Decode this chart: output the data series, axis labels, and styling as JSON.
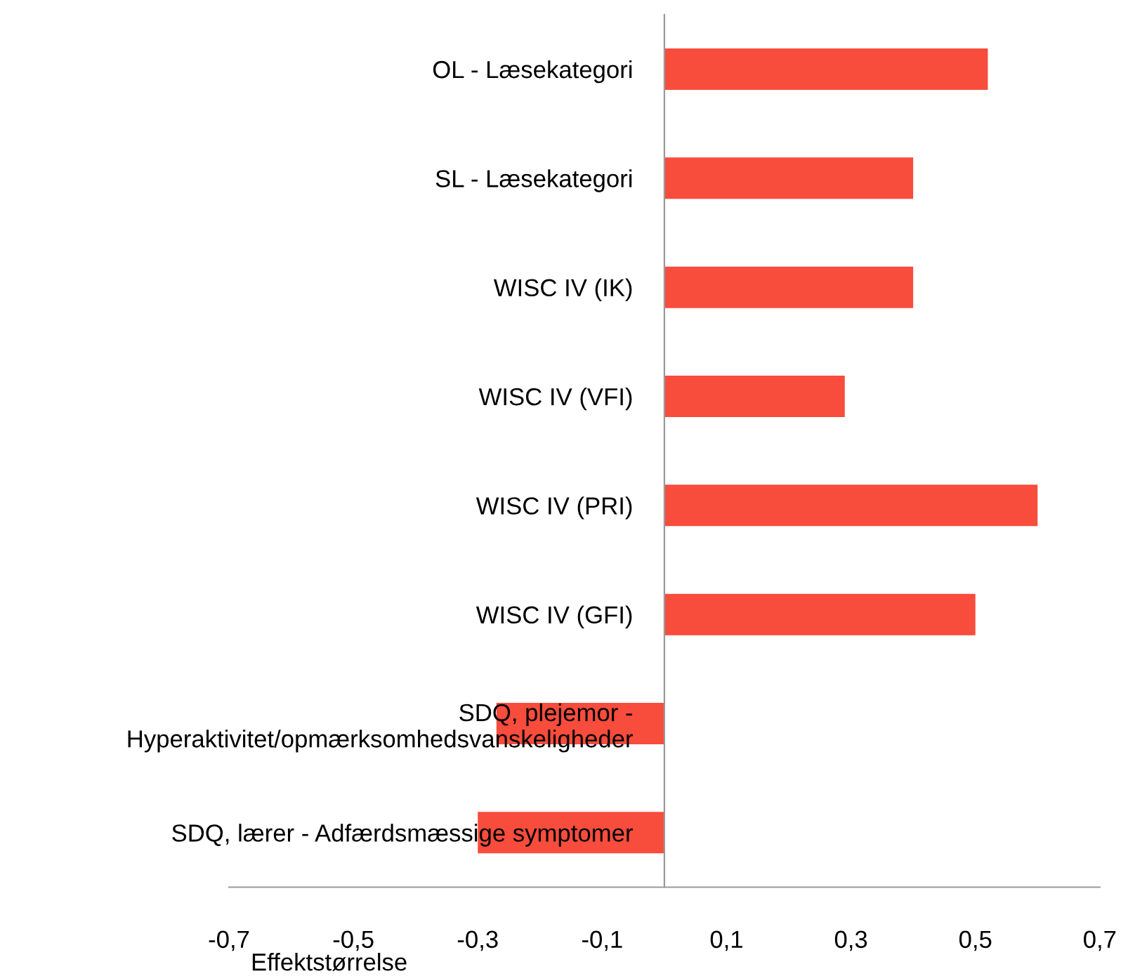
{
  "chart_data": {
    "type": "bar",
    "orientation": "horizontal",
    "xlabel": "Effektstørrelse",
    "categories": [
      "OL - Læsekategori",
      "SL - Læsekategori",
      "WISC IV (IK)",
      "WISC IV (VFI)",
      "WISC IV (PRI)",
      "WISC IV (GFI)",
      "SDQ, plejemor -\nHyperaktivitet/opmærksomhedsvanskeligheder",
      "SDQ, lærer - Adfærdsmæssige symptomer"
    ],
    "values": [
      0.52,
      0.4,
      0.4,
      0.29,
      0.6,
      0.5,
      -0.27,
      -0.3
    ],
    "color": "#f84c3d",
    "xlim": [
      -0.7,
      0.7
    ],
    "xticks": [
      {
        "value": -0.7,
        "label": "-0,7"
      },
      {
        "value": -0.5,
        "label": "-0,5"
      },
      {
        "value": -0.3,
        "label": "-0,3"
      },
      {
        "value": -0.1,
        "label": "-0,1"
      },
      {
        "value": 0.1,
        "label": "0,1"
      },
      {
        "value": 0.3,
        "label": "0,3"
      },
      {
        "value": 0.5,
        "label": "0,5"
      },
      {
        "value": 0.7,
        "label": "0,7"
      }
    ],
    "grid": false,
    "legend": false
  }
}
